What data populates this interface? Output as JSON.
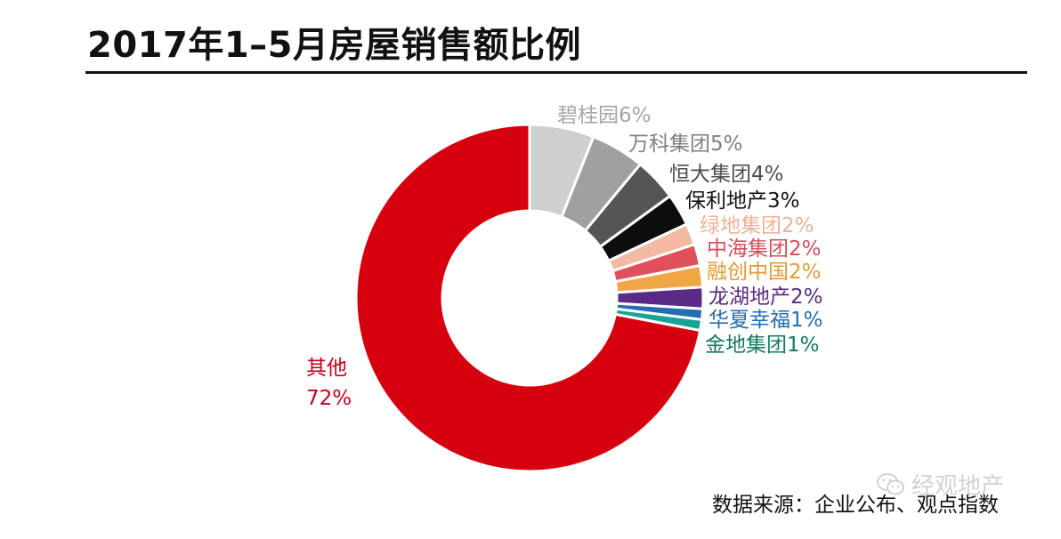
{
  "chart_data": {
    "type": "pie",
    "title": "2017年1–5月房屋销售额比例",
    "hole": "donut",
    "slices": [
      {
        "label": "碧桂园6%",
        "name": "碧桂园",
        "value": 6,
        "color": "#cfcfcf",
        "label_color": "#a6a6a6"
      },
      {
        "label": "万科集团5%",
        "name": "万科集团",
        "value": 5,
        "color": "#a0a0a0",
        "label_color": "#7f7f7f"
      },
      {
        "label": "恒大集团4%",
        "name": "恒大集团",
        "value": 4,
        "color": "#555555",
        "label_color": "#4d4d4d"
      },
      {
        "label": "保利地产3%",
        "name": "保利地产",
        "value": 3,
        "color": "#0d0d0d",
        "label_color": "#111111"
      },
      {
        "label": "绿地集团2%",
        "name": "绿地集团",
        "value": 2,
        "color": "#f4b9a3",
        "label_color": "#f0b198"
      },
      {
        "label": "中海集团2%",
        "name": "中海集团",
        "value": 2,
        "color": "#e0505a",
        "label_color": "#d84c5c"
      },
      {
        "label": "融创中国2%",
        "name": "融创中国",
        "value": 2,
        "color": "#f1a645",
        "label_color": "#e39a35"
      },
      {
        "label": "龙湖地产2%",
        "name": "龙湖地产",
        "value": 2,
        "color": "#5b2a86",
        "label_color": "#5b2a86"
      },
      {
        "label": "华夏幸福1%",
        "name": "华夏幸福",
        "value": 1,
        "color": "#1f6fb2",
        "label_color": "#1f6fb2"
      },
      {
        "label": "金地集团1%",
        "name": "金地集团",
        "value": 1,
        "color": "#17a398",
        "label_color": "#127a5e"
      },
      {
        "label": "其他\n72%",
        "name": "其他",
        "value": 72,
        "color": "#d7000f",
        "label_color": "#c8001b"
      }
    ]
  },
  "source_note": "数据来源：企业公布、观点指数",
  "watermark": {
    "text": "经观地产",
    "icon": "wechat-icon"
  }
}
